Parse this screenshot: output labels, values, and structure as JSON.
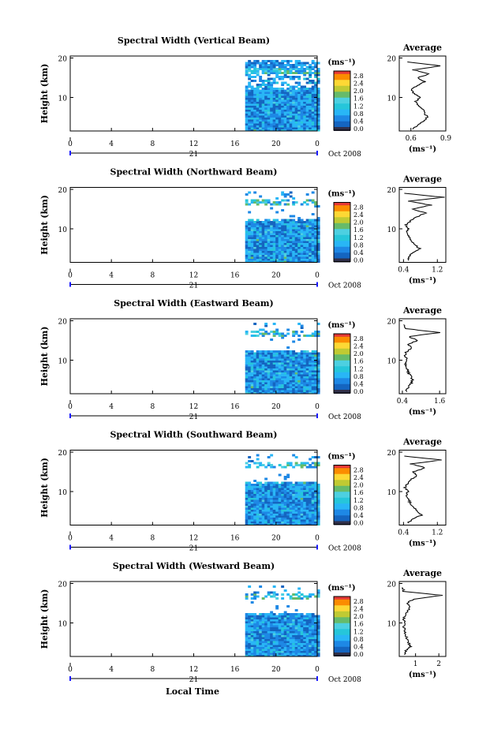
{
  "figure": {
    "xlabel_bottom": "Local Time",
    "colorbar_ticks": [
      "2.8",
      "2.4",
      "2.0",
      "1.6",
      "1.2",
      "0.8",
      "0.4",
      "0.0"
    ],
    "colorbar_unit": "(ms⁻¹)",
    "average_title": "Average",
    "average_xlabel": "(ms⁻¹)",
    "date_label": "Oct 2008",
    "day_label": "21",
    "colors": {
      "scale": [
        "#1a237e",
        "#1565c0",
        "#1e88e5",
        "#29b6f6",
        "#26c6da",
        "#4dd0e1",
        "#66bb6a",
        "#c0ca33",
        "#fdd835",
        "#fb8c00",
        "#e53935"
      ],
      "bottom_band": "#30304a"
    }
  },
  "chart_data": [
    {
      "type": "heatmap",
      "title": "Spectral Width (Vertical Beam)",
      "ylabel": "Height (km)",
      "x_ticks": [
        "0",
        "4",
        "8",
        "12",
        "16",
        "20",
        "0"
      ],
      "y_ticks": [
        "10",
        "20"
      ],
      "xlim": [
        0,
        24
      ],
      "ylim": [
        1.5,
        20.5
      ],
      "data_extent": {
        "x": [
          17,
          24
        ],
        "y": [
          1.5,
          19.5
        ]
      },
      "average": {
        "xlim": [
          0.5,
          0.9
        ],
        "x_ticks": [
          "0.6",
          "0.9"
        ],
        "y_ticks": [
          "10",
          "20"
        ],
        "height": [
          2,
          3,
          4,
          5,
          6,
          7,
          8,
          9,
          10,
          11,
          12,
          13,
          14,
          15,
          16,
          17,
          18,
          19
        ],
        "width": [
          0.62,
          0.66,
          0.71,
          0.74,
          0.72,
          0.7,
          0.66,
          0.64,
          0.68,
          0.63,
          0.6,
          0.66,
          0.72,
          0.66,
          0.76,
          0.62,
          0.86,
          0.57
        ]
      }
    },
    {
      "type": "heatmap",
      "title": "Spectral Width (Northward Beam)",
      "ylabel": "Height (km)",
      "x_ticks": [
        "0",
        "4",
        "8",
        "12",
        "16",
        "20",
        "0"
      ],
      "y_ticks": [
        "10",
        "20"
      ],
      "xlim": [
        0,
        24
      ],
      "ylim": [
        1.5,
        20.5
      ],
      "data_extent": {
        "x": [
          17,
          24
        ],
        "y": [
          1.5,
          19.5
        ]
      },
      "average": {
        "xlim": [
          0.3,
          1.4
        ],
        "x_ticks": [
          "0.4",
          "1.2"
        ],
        "y_ticks": [
          "10",
          "20"
        ],
        "height": [
          2,
          3,
          4,
          5,
          6,
          7,
          8,
          9,
          10,
          11,
          12,
          13,
          14,
          15,
          16,
          17,
          18,
          19
        ],
        "width": [
          0.5,
          0.54,
          0.62,
          0.78,
          0.68,
          0.56,
          0.52,
          0.48,
          0.52,
          0.46,
          0.56,
          0.72,
          0.92,
          0.62,
          1.05,
          0.5,
          1.35,
          0.42
        ]
      }
    },
    {
      "type": "heatmap",
      "title": "Spectral Width (Eastward Beam)",
      "ylabel": "Height (km)",
      "x_ticks": [
        "0",
        "4",
        "8",
        "12",
        "16",
        "20",
        "0"
      ],
      "y_ticks": [
        "10",
        "20"
      ],
      "xlim": [
        0,
        24
      ],
      "ylim": [
        1.5,
        20.5
      ],
      "data_extent": {
        "x": [
          17,
          24
        ],
        "y": [
          1.5,
          19.5
        ]
      },
      "average": {
        "xlim": [
          0.3,
          1.8
        ],
        "x_ticks": [
          "0.4",
          "1.6"
        ],
        "y_ticks": [
          "10",
          "20"
        ],
        "height": [
          2,
          3,
          4,
          5,
          6,
          7,
          8,
          9,
          10,
          11,
          12,
          13,
          14,
          15,
          16,
          17,
          18,
          19
        ],
        "width": [
          0.52,
          0.58,
          0.68,
          0.72,
          0.66,
          0.58,
          0.54,
          0.5,
          0.56,
          0.48,
          0.52,
          0.7,
          0.6,
          0.88,
          0.62,
          1.6,
          0.52,
          0.44
        ]
      }
    },
    {
      "type": "heatmap",
      "title": "Spectral Width (Southward Beam)",
      "ylabel": "Height (km)",
      "x_ticks": [
        "0",
        "4",
        "8",
        "12",
        "16",
        "20",
        "0"
      ],
      "y_ticks": [
        "10",
        "20"
      ],
      "xlim": [
        0,
        24
      ],
      "ylim": [
        1.5,
        20.5
      ],
      "data_extent": {
        "x": [
          17,
          24
        ],
        "y": [
          1.5,
          19.5
        ]
      },
      "average": {
        "xlim": [
          0.3,
          1.4
        ],
        "x_ticks": [
          "0.4",
          "1.2"
        ],
        "y_ticks": [
          "10",
          "20"
        ],
        "height": [
          2,
          3,
          4,
          5,
          6,
          7,
          8,
          9,
          10,
          11,
          12,
          13,
          14,
          15,
          16,
          17,
          18,
          19
        ],
        "width": [
          0.5,
          0.6,
          0.82,
          0.72,
          0.64,
          0.56,
          0.52,
          0.46,
          0.5,
          0.44,
          0.5,
          0.56,
          0.72,
          0.64,
          0.92,
          0.56,
          1.3,
          0.42
        ]
      }
    },
    {
      "type": "heatmap",
      "title": "Spectral Width (Westward Beam)",
      "ylabel": "Height (km)",
      "x_ticks": [
        "0",
        "4",
        "8",
        "12",
        "16",
        "20",
        "0"
      ],
      "y_ticks": [
        "10",
        "20"
      ],
      "xlim": [
        0,
        24
      ],
      "ylim": [
        1.5,
        20.5
      ],
      "data_extent": {
        "x": [
          17,
          24
        ],
        "y": [
          1.5,
          19.5
        ]
      },
      "average": {
        "xlim": [
          0.3,
          2.3
        ],
        "x_ticks": [
          "1",
          "2"
        ],
        "y_ticks": [
          "10",
          "20"
        ],
        "height": [
          2,
          3,
          4,
          5,
          6,
          7,
          8,
          9,
          10,
          11,
          12,
          13,
          14,
          15,
          16,
          17,
          18,
          19
        ],
        "width": [
          0.52,
          0.6,
          0.78,
          0.7,
          0.62,
          0.58,
          0.54,
          0.5,
          0.58,
          0.48,
          0.56,
          0.66,
          0.74,
          0.62,
          0.9,
          2.15,
          0.5,
          0.42
        ]
      }
    }
  ]
}
